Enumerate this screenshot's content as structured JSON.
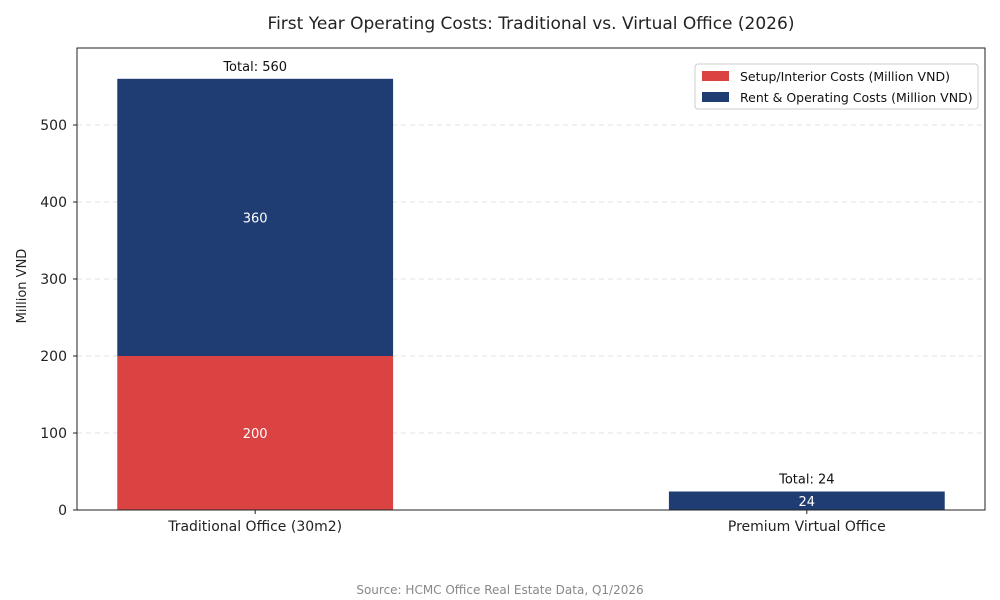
{
  "chart_data": {
    "type": "bar",
    "stacked": true,
    "title": "First Year Operating Costs: Traditional vs. Virtual Office (2026)",
    "xlabel": "",
    "ylabel": "Million VND",
    "ylim": [
      0,
      600
    ],
    "yticks": [
      0,
      100,
      200,
      300,
      400,
      500
    ],
    "grid": true,
    "legend_position": "top-right",
    "categories": [
      "Traditional Office (30m2)",
      "Premium Virtual Office"
    ],
    "series": [
      {
        "name": "Setup/Interior Costs (Million VND)",
        "values": [
          200,
          0
        ],
        "color": "#DB4242"
      },
      {
        "name": "Rent & Operating Costs (Million VND)",
        "values": [
          360,
          24
        ],
        "color": "#1F3D73"
      }
    ],
    "segment_labels": [
      [
        "200",
        ""
      ],
      [
        "360",
        "24"
      ]
    ],
    "total_labels": [
      "Total: 560",
      "Total: 24"
    ],
    "source": "Source: HCMC Office Real Estate Data, Q1/2026"
  }
}
